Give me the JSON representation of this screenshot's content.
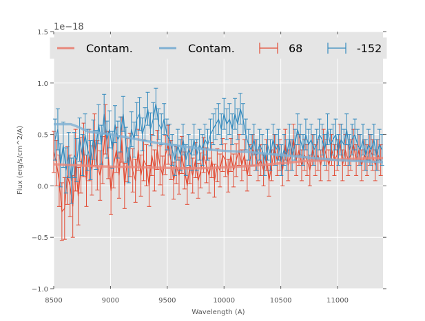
{
  "chart_data": {
    "type": "line",
    "title": "",
    "xlabel": "Wavelength (A)",
    "ylabel": "Flux (erg/s/cm^2/A)",
    "y_offset_label": "1e−18",
    "xlim": [
      8500,
      11400
    ],
    "ylim": [
      -1.0,
      1.5
    ],
    "x_ticks": [
      8500,
      9000,
      9500,
      10000,
      10500,
      11000
    ],
    "x_tick_labels": [
      "8500",
      "9000",
      "9500",
      "10000",
      "10500",
      "11000"
    ],
    "y_ticks": [
      -1.0,
      -0.5,
      0.0,
      0.5,
      1.0,
      1.5
    ],
    "y_tick_labels": [
      "−1.0",
      "−0.5",
      "0.0",
      "0.5",
      "1.0",
      "1.5"
    ],
    "grid": true,
    "legend": {
      "placement": "top",
      "columns": 4,
      "entries": [
        {
          "label": "Contam.",
          "kind": "line",
          "color": "#E8877A"
        },
        {
          "label": "Contam.",
          "kind": "line",
          "color": "#7FB0D3"
        },
        {
          "label": "68",
          "kind": "errorbar",
          "color": "#E24A33"
        },
        {
          "label": "-152",
          "kind": "errorbar",
          "color": "#348ABD"
        }
      ]
    },
    "colors": {
      "red": "#E24A33",
      "blue": "#348ABD",
      "red_contam": "#E8877A",
      "blue_contam": "#7FB0D3",
      "axes_bg": "#E5E5E5",
      "grid": "#FFFFFF"
    },
    "contam_series": [
      {
        "name": "Contam.",
        "color": "#E8877A",
        "x": [
          8500,
          8700,
          8900,
          9100,
          9300,
          9500,
          9700,
          9900,
          10100,
          10300,
          10500,
          10700,
          10900,
          11100,
          11300,
          11400
        ],
        "y": [
          0.21,
          0.2,
          0.19,
          0.185,
          0.18,
          0.175,
          0.17,
          0.175,
          0.185,
          0.2,
          0.22,
          0.24,
          0.25,
          0.26,
          0.27,
          0.27
        ]
      },
      {
        "name": "Contam.",
        "color": "#7FB0D3",
        "x": [
          8500,
          8650,
          8700,
          8800,
          9000,
          9200,
          9400,
          9600,
          9800,
          10000,
          10200,
          10400,
          10600,
          10800,
          11000,
          11200,
          11400
        ],
        "y": [
          0.6,
          0.6,
          0.58,
          0.53,
          0.5,
          0.46,
          0.42,
          0.39,
          0.36,
          0.34,
          0.33,
          0.31,
          0.29,
          0.27,
          0.25,
          0.24,
          0.23
        ]
      }
    ],
    "errorbar_series": [
      {
        "name": "68",
        "color": "#E24A33",
        "x": [
          8500,
          8524,
          8548,
          8572,
          8596,
          8620,
          8644,
          8668,
          8692,
          8716,
          8740,
          8764,
          8788,
          8812,
          8836,
          8860,
          8884,
          8908,
          8932,
          8956,
          8980,
          9004,
          9028,
          9052,
          9076,
          9100,
          9124,
          9148,
          9172,
          9196,
          9220,
          9244,
          9268,
          9292,
          9316,
          9340,
          9364,
          9388,
          9412,
          9436,
          9460,
          9484,
          9508,
          9532,
          9556,
          9580,
          9604,
          9628,
          9652,
          9676,
          9700,
          9724,
          9748,
          9772,
          9796,
          9820,
          9844,
          9868,
          9892,
          9916,
          9940,
          9964,
          9988,
          10012,
          10036,
          10060,
          10084,
          10108,
          10132,
          10156,
          10180,
          10204,
          10228,
          10252,
          10276,
          10300,
          10324,
          10348,
          10372,
          10396,
          10420,
          10444,
          10468,
          10492,
          10516,
          10540,
          10564,
          10588,
          10612,
          10636,
          10660,
          10684,
          10708,
          10732,
          10756,
          10780,
          10804,
          10828,
          10852,
          10876,
          10900,
          10924,
          10948,
          10972,
          10996,
          11020,
          11044,
          11068,
          11092,
          11116,
          11140,
          11164,
          11188,
          11212,
          11236,
          11260,
          11284,
          11308,
          11332,
          11356,
          11380
        ],
        "y": [
          0.33,
          0.22,
          0.05,
          -0.25,
          -0.22,
          0.1,
          0.0,
          -0.2,
          0.25,
          -0.1,
          0.2,
          0.35,
          0.05,
          0.3,
          0.15,
          0.45,
          0.2,
          0.1,
          0.25,
          0.55,
          0.3,
          -0.05,
          0.2,
          0.35,
          0.1,
          0.45,
          0.0,
          0.25,
          0.3,
          0.15,
          0.05,
          0.35,
          0.1,
          0.25,
          0.2,
          0.0,
          0.3,
          0.15,
          0.35,
          0.2,
          0.1,
          0.3,
          0.4,
          0.25,
          0.05,
          0.2,
          0.1,
          0.3,
          0.15,
          0.0,
          0.2,
          0.1,
          0.25,
          0.05,
          0.15,
          0.3,
          0.2,
          0.1,
          0.25,
          0.05,
          0.2,
          0.15,
          0.3,
          0.25,
          0.1,
          0.3,
          0.15,
          0.25,
          0.35,
          0.2,
          0.3,
          0.1,
          0.25,
          0.35,
          0.3,
          0.2,
          0.25,
          0.15,
          0.3,
          0.05,
          0.2,
          0.35,
          0.25,
          0.3,
          0.15,
          0.4,
          0.2,
          0.3,
          0.45,
          0.25,
          0.35,
          0.2,
          0.3,
          0.25,
          0.15,
          0.35,
          0.25,
          0.3,
          0.2,
          0.4,
          0.3,
          0.2,
          0.35,
          0.25,
          0.3,
          0.45,
          0.2,
          0.35,
          0.25,
          0.3,
          0.4,
          0.25,
          0.35,
          0.2,
          0.3,
          0.25,
          0.35,
          0.3,
          0.2,
          0.3,
          0.25
        ],
        "yerr": [
          0.2,
          0.22,
          0.25,
          0.28,
          0.3,
          0.28,
          0.3,
          0.3,
          0.3,
          0.28,
          0.27,
          0.26,
          0.25,
          0.25,
          0.24,
          0.25,
          0.24,
          0.24,
          0.23,
          0.24,
          0.23,
          0.23,
          0.22,
          0.22,
          0.22,
          0.22,
          0.22,
          0.21,
          0.21,
          0.21,
          0.21,
          0.2,
          0.2,
          0.2,
          0.2,
          0.2,
          0.2,
          0.2,
          0.19,
          0.19,
          0.19,
          0.19,
          0.19,
          0.19,
          0.18,
          0.18,
          0.18,
          0.18,
          0.18,
          0.18,
          0.18,
          0.17,
          0.17,
          0.17,
          0.17,
          0.17,
          0.17,
          0.17,
          0.17,
          0.16,
          0.16,
          0.16,
          0.16,
          0.16,
          0.16,
          0.16,
          0.16,
          0.16,
          0.15,
          0.15,
          0.15,
          0.15,
          0.15,
          0.15,
          0.15,
          0.15,
          0.15,
          0.15,
          0.15,
          0.15,
          0.15,
          0.15,
          0.15,
          0.15,
          0.15,
          0.15,
          0.15,
          0.15,
          0.15,
          0.15,
          0.15,
          0.15,
          0.15,
          0.15,
          0.15,
          0.15,
          0.15,
          0.15,
          0.15,
          0.15,
          0.15,
          0.15,
          0.15,
          0.15,
          0.15,
          0.15,
          0.15,
          0.15,
          0.15,
          0.15,
          0.15,
          0.15,
          0.15,
          0.15,
          0.15,
          0.15,
          0.15,
          0.15,
          0.15,
          0.15,
          0.15
        ]
      },
      {
        "name": "-152",
        "color": "#348ABD",
        "x": [
          8512,
          8536,
          8560,
          8584,
          8608,
          8632,
          8656,
          8680,
          8704,
          8728,
          8752,
          8776,
          8800,
          8824,
          8848,
          8872,
          8896,
          8920,
          8944,
          8968,
          8992,
          9016,
          9040,
          9064,
          9088,
          9112,
          9136,
          9160,
          9184,
          9208,
          9232,
          9256,
          9280,
          9304,
          9328,
          9352,
          9376,
          9400,
          9424,
          9448,
          9472,
          9496,
          9520,
          9544,
          9568,
          9592,
          9616,
          9640,
          9664,
          9688,
          9712,
          9736,
          9760,
          9784,
          9808,
          9832,
          9856,
          9880,
          9904,
          9928,
          9952,
          9976,
          10000,
          10024,
          10048,
          10072,
          10096,
          10120,
          10144,
          10168,
          10192,
          10216,
          10240,
          10264,
          10288,
          10312,
          10336,
          10360,
          10384,
          10408,
          10432,
          10456,
          10480,
          10504,
          10528,
          10552,
          10576,
          10600,
          10624,
          10648,
          10672,
          10696,
          10720,
          10744,
          10768,
          10792,
          10816,
          10840,
          10864,
          10888,
          10912,
          10936,
          10960,
          10984,
          11008,
          11032,
          11056,
          11080,
          11104,
          11128,
          11152,
          11176,
          11200,
          11224,
          11248,
          11272,
          11296,
          11320,
          11344,
          11368,
          11392
        ],
        "y": [
          0.45,
          0.55,
          0.2,
          0.4,
          0.15,
          0.3,
          0.05,
          0.3,
          0.25,
          0.45,
          0.3,
          0.5,
          0.35,
          0.25,
          0.45,
          0.35,
          0.6,
          0.4,
          0.7,
          0.45,
          0.55,
          0.35,
          0.6,
          0.45,
          0.5,
          0.7,
          0.4,
          0.2,
          0.55,
          0.45,
          0.65,
          0.7,
          0.5,
          0.6,
          0.75,
          0.55,
          0.65,
          0.8,
          0.6,
          0.55,
          0.65,
          0.5,
          0.45,
          0.35,
          0.25,
          0.4,
          0.3,
          0.45,
          0.25,
          0.35,
          0.3,
          0.45,
          0.3,
          0.4,
          0.35,
          0.45,
          0.4,
          0.5,
          0.55,
          0.6,
          0.65,
          0.55,
          0.7,
          0.6,
          0.65,
          0.55,
          0.7,
          0.6,
          0.75,
          0.65,
          0.5,
          0.4,
          0.35,
          0.45,
          0.3,
          0.4,
          0.35,
          0.25,
          0.4,
          0.3,
          0.45,
          0.35,
          0.4,
          0.25,
          0.35,
          0.3,
          0.45,
          0.3,
          0.4,
          0.55,
          0.45,
          0.35,
          0.5,
          0.4,
          0.45,
          0.35,
          0.4,
          0.5,
          0.45,
          0.35,
          0.55,
          0.4,
          0.45,
          0.5,
          0.35,
          0.45,
          0.4,
          0.55,
          0.35,
          0.45,
          0.5,
          0.4,
          0.35,
          0.45,
          0.3,
          0.4,
          0.35,
          0.45,
          0.3,
          0.4,
          0.35
        ],
        "yerr": [
          0.2,
          0.2,
          0.21,
          0.22,
          0.22,
          0.22,
          0.22,
          0.22,
          0.21,
          0.21,
          0.2,
          0.2,
          0.2,
          0.19,
          0.19,
          0.19,
          0.19,
          0.19,
          0.19,
          0.18,
          0.18,
          0.18,
          0.18,
          0.18,
          0.17,
          0.17,
          0.17,
          0.17,
          0.17,
          0.17,
          0.16,
          0.16,
          0.16,
          0.16,
          0.16,
          0.16,
          0.16,
          0.15,
          0.15,
          0.15,
          0.15,
          0.15,
          0.15,
          0.15,
          0.15,
          0.15,
          0.15,
          0.15,
          0.15,
          0.15,
          0.15,
          0.15,
          0.15,
          0.15,
          0.15,
          0.15,
          0.15,
          0.15,
          0.15,
          0.15,
          0.15,
          0.15,
          0.15,
          0.15,
          0.15,
          0.15,
          0.15,
          0.15,
          0.15,
          0.15,
          0.15,
          0.15,
          0.15,
          0.15,
          0.15,
          0.15,
          0.15,
          0.15,
          0.15,
          0.15,
          0.15,
          0.15,
          0.15,
          0.15,
          0.15,
          0.15,
          0.15,
          0.15,
          0.15,
          0.15,
          0.15,
          0.15,
          0.15,
          0.15,
          0.15,
          0.15,
          0.15,
          0.15,
          0.15,
          0.15,
          0.15,
          0.15,
          0.15,
          0.15,
          0.15,
          0.15,
          0.15,
          0.15,
          0.15,
          0.15,
          0.15,
          0.15,
          0.15,
          0.15,
          0.15,
          0.15,
          0.15,
          0.15,
          0.15,
          0.15,
          0.15
        ]
      }
    ]
  }
}
